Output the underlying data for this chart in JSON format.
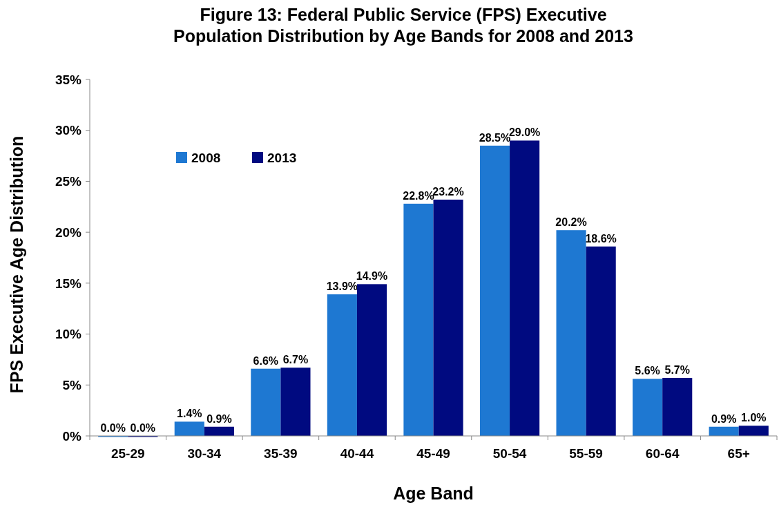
{
  "chart_data": {
    "type": "bar",
    "title": "Figure 13: Federal Public Service (FPS) Executive Population Distribution by Age Bands for 2008 and 2013",
    "xlabel": "Age Band",
    "ylabel": "FPS Executive Age Distribution",
    "categories": [
      "25-29",
      "30-34",
      "35-39",
      "40-44",
      "45-49",
      "50-54",
      "55-59",
      "60-64",
      "65+"
    ],
    "series": [
      {
        "name": "2008",
        "color": "#1e78d2",
        "values": [
          0.0,
          1.4,
          6.6,
          13.9,
          22.8,
          28.5,
          20.2,
          5.6,
          0.9
        ],
        "value_labels": [
          "0.0%",
          "1.4%",
          "6.6%",
          "13.9%",
          "22.8%",
          "28.5%",
          "20.2%",
          "5.6%",
          "0.9%"
        ]
      },
      {
        "name": "2013",
        "color": "#000a80",
        "values": [
          0.0,
          0.9,
          6.7,
          14.9,
          23.2,
          29.0,
          18.6,
          5.7,
          1.0
        ],
        "value_labels": [
          "0.0%",
          "0.9%",
          "6.7%",
          "14.9%",
          "23.2%",
          "29.0%",
          "18.6%",
          "5.7%",
          "1.0%"
        ]
      }
    ],
    "ylim": [
      0,
      35
    ],
    "yticks": [
      {
        "value": 0,
        "label": "0%"
      },
      {
        "value": 5,
        "label": "5%"
      },
      {
        "value": 10,
        "label": "10%"
      },
      {
        "value": 15,
        "label": "15%"
      },
      {
        "value": 20,
        "label": "20%"
      },
      {
        "value": 25,
        "label": "25%"
      },
      {
        "value": 30,
        "label": "30%"
      },
      {
        "value": 35,
        "label": "35%"
      }
    ],
    "legend": "top left",
    "grid": false
  }
}
